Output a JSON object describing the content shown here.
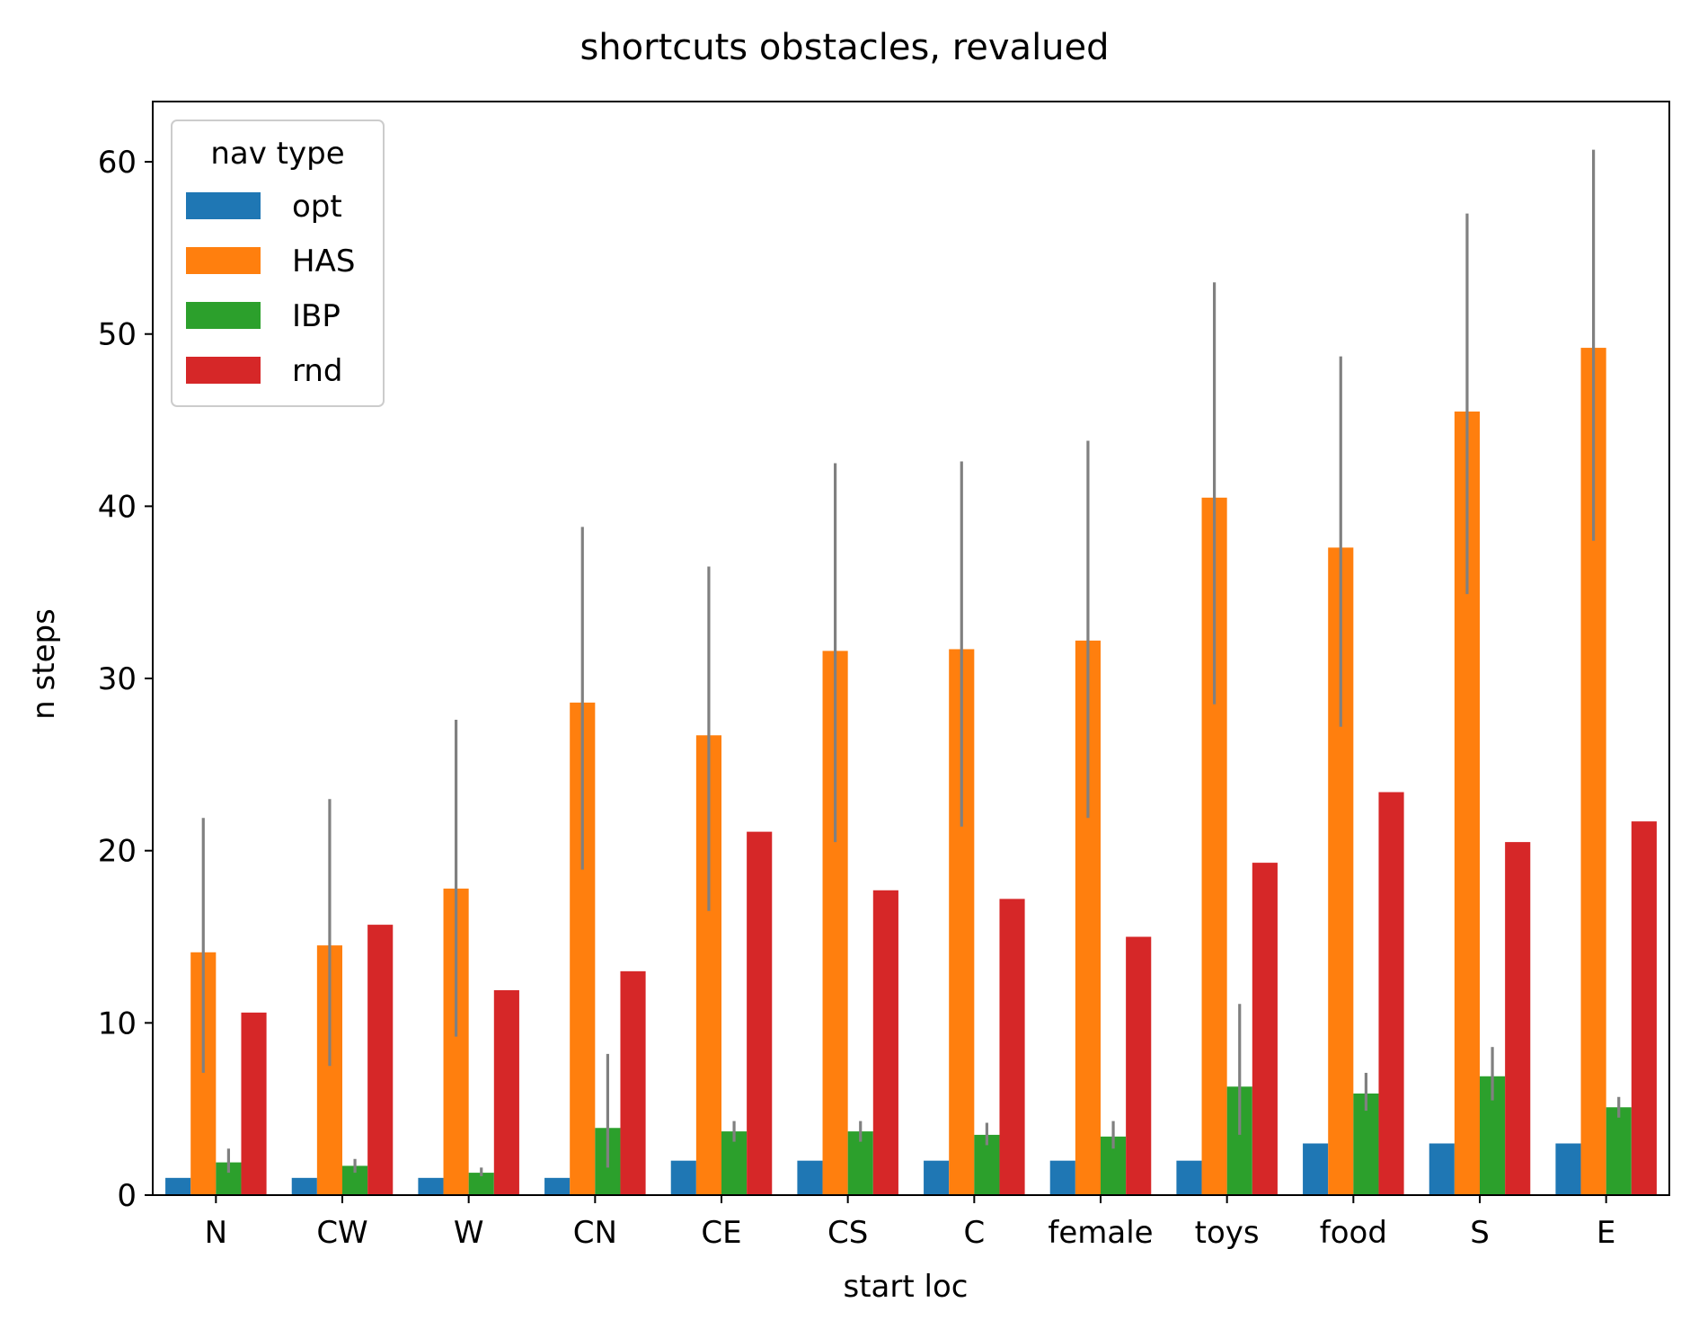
{
  "chart_data": {
    "type": "bar",
    "title": "shortcuts obstacles, revalued",
    "xlabel": "start loc",
    "ylabel": "n steps",
    "ylim": [
      0,
      63.5
    ],
    "yticks": [
      0,
      10,
      20,
      30,
      40,
      50,
      60
    ],
    "categories": [
      "N",
      "CW",
      "W",
      "CN",
      "CE",
      "CS",
      "C",
      "female",
      "toys",
      "food",
      "S",
      "E"
    ],
    "legend": {
      "title": "nav type",
      "placement": "top-left"
    },
    "grid": false,
    "series": [
      {
        "name": "opt",
        "color": "#1f77b4",
        "values": [
          1,
          1,
          1,
          1,
          2,
          2,
          2,
          2,
          2,
          3,
          3,
          3
        ],
        "ci": [
          null,
          null,
          null,
          null,
          null,
          null,
          null,
          null,
          null,
          null,
          null,
          null
        ]
      },
      {
        "name": "HAS",
        "color": "#ff7f0e",
        "values": [
          14.1,
          14.5,
          17.8,
          28.6,
          26.7,
          31.6,
          31.7,
          32.2,
          40.5,
          37.6,
          45.5,
          49.2
        ],
        "ci": [
          [
            7.1,
            21.9
          ],
          [
            7.5,
            23.0
          ],
          [
            9.2,
            27.6
          ],
          [
            18.9,
            38.8
          ],
          [
            16.5,
            36.5
          ],
          [
            20.5,
            42.5
          ],
          [
            21.4,
            42.6
          ],
          [
            21.9,
            43.8
          ],
          [
            28.5,
            53.0
          ],
          [
            27.2,
            48.7
          ],
          [
            34.9,
            57.0
          ],
          [
            38.0,
            60.7
          ]
        ]
      },
      {
        "name": "IBP",
        "color": "#2ca02c",
        "values": [
          1.9,
          1.7,
          1.3,
          3.9,
          3.7,
          3.7,
          3.5,
          3.4,
          6.3,
          5.9,
          6.9,
          5.1
        ],
        "ci": [
          [
            1.3,
            2.7
          ],
          [
            1.3,
            2.1
          ],
          [
            1.1,
            1.6
          ],
          [
            1.6,
            8.2
          ],
          [
            3.1,
            4.3
          ],
          [
            3.1,
            4.3
          ],
          [
            2.9,
            4.2
          ],
          [
            2.7,
            4.3
          ],
          [
            3.5,
            11.1
          ],
          [
            4.9,
            7.1
          ],
          [
            5.5,
            8.6
          ],
          [
            4.5,
            5.7
          ]
        ]
      },
      {
        "name": "rnd",
        "color": "#d62728",
        "values": [
          10.6,
          15.7,
          11.9,
          13.0,
          21.1,
          17.7,
          17.2,
          15.0,
          19.3,
          23.4,
          20.5,
          21.7
        ],
        "ci": [
          null,
          null,
          null,
          null,
          null,
          null,
          null,
          null,
          null,
          null,
          null,
          null
        ]
      }
    ]
  }
}
